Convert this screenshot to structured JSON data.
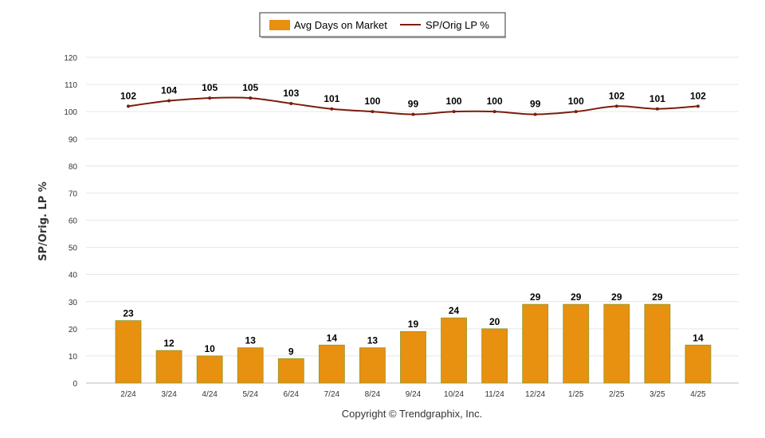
{
  "legend": {
    "bar_label": "Avg Days on Market",
    "line_label": "SP/Orig LP %"
  },
  "copyright": "Copyright © Trendgraphix, Inc.",
  "colors": {
    "bar": "#E8900F",
    "bar_edge": "#8A9A2A",
    "line": "#7A1E0A",
    "grid": "#E6E6E6"
  },
  "chart_data": {
    "type": "bar",
    "categories": [
      "2/24",
      "3/24",
      "4/24",
      "5/24",
      "6/24",
      "7/24",
      "8/24",
      "9/24",
      "10/24",
      "11/24",
      "12/24",
      "1/25",
      "2/25",
      "3/25",
      "4/25"
    ],
    "series": [
      {
        "name": "Avg Days on Market",
        "type": "bar",
        "values": [
          23,
          12,
          10,
          13,
          9,
          14,
          13,
          19,
          24,
          20,
          29,
          29,
          29,
          29,
          14
        ]
      },
      {
        "name": "SP/Orig LP %",
        "type": "line",
        "values": [
          102,
          104,
          105,
          105,
          103,
          101,
          100,
          99,
          100,
          100,
          99,
          100,
          102,
          101,
          102
        ]
      }
    ],
    "ylabel": "SP/Orig. LP %",
    "yticks": [
      0,
      10,
      20,
      30,
      40,
      50,
      60,
      70,
      80,
      90,
      100,
      110,
      120
    ],
    "ylim": [
      0,
      120
    ],
    "grid": true,
    "legend_position": "top-center"
  }
}
